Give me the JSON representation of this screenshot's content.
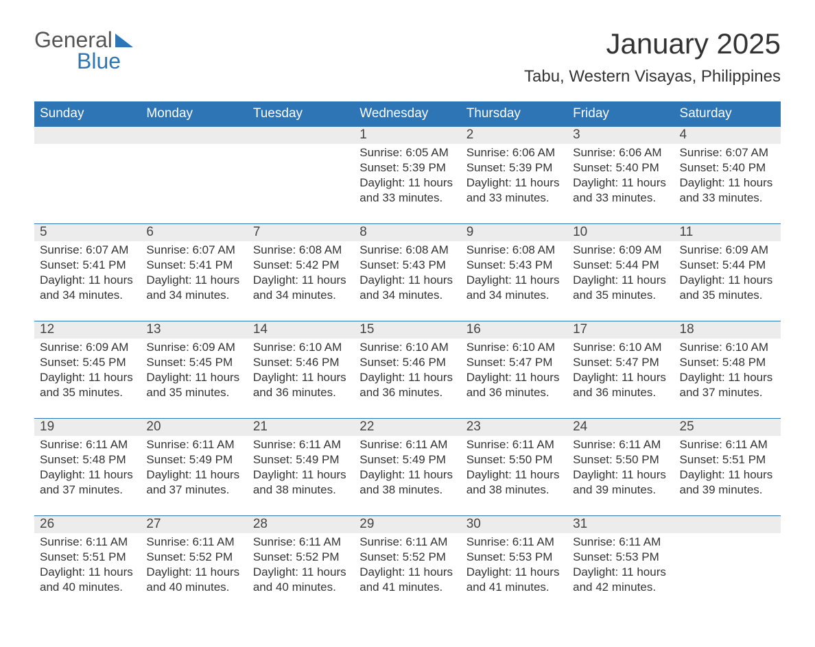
{
  "logo": {
    "general": "General",
    "blue": "Blue",
    "triangle_color": "#2e75b6",
    "general_color": "#555555",
    "blue_color": "#2e75b6"
  },
  "title": "January 2025",
  "location": "Tabu, Western Visayas, Philippines",
  "colors": {
    "header_bg": "#2e75b6",
    "header_text": "#ffffff",
    "daynum_bg": "#ececec",
    "body_bg": "#ffffff",
    "text": "#333333",
    "week_border": "#2e75b6"
  },
  "day_names": [
    "Sunday",
    "Monday",
    "Tuesday",
    "Wednesday",
    "Thursday",
    "Friday",
    "Saturday"
  ],
  "weeks": [
    [
      {
        "n": "",
        "sunrise": "",
        "sunset": "",
        "daylight": ""
      },
      {
        "n": "",
        "sunrise": "",
        "sunset": "",
        "daylight": ""
      },
      {
        "n": "",
        "sunrise": "",
        "sunset": "",
        "daylight": ""
      },
      {
        "n": "1",
        "sunrise": "Sunrise: 6:05 AM",
        "sunset": "Sunset: 5:39 PM",
        "daylight": "Daylight: 11 hours and 33 minutes."
      },
      {
        "n": "2",
        "sunrise": "Sunrise: 6:06 AM",
        "sunset": "Sunset: 5:39 PM",
        "daylight": "Daylight: 11 hours and 33 minutes."
      },
      {
        "n": "3",
        "sunrise": "Sunrise: 6:06 AM",
        "sunset": "Sunset: 5:40 PM",
        "daylight": "Daylight: 11 hours and 33 minutes."
      },
      {
        "n": "4",
        "sunrise": "Sunrise: 6:07 AM",
        "sunset": "Sunset: 5:40 PM",
        "daylight": "Daylight: 11 hours and 33 minutes."
      }
    ],
    [
      {
        "n": "5",
        "sunrise": "Sunrise: 6:07 AM",
        "sunset": "Sunset: 5:41 PM",
        "daylight": "Daylight: 11 hours and 34 minutes."
      },
      {
        "n": "6",
        "sunrise": "Sunrise: 6:07 AM",
        "sunset": "Sunset: 5:41 PM",
        "daylight": "Daylight: 11 hours and 34 minutes."
      },
      {
        "n": "7",
        "sunrise": "Sunrise: 6:08 AM",
        "sunset": "Sunset: 5:42 PM",
        "daylight": "Daylight: 11 hours and 34 minutes."
      },
      {
        "n": "8",
        "sunrise": "Sunrise: 6:08 AM",
        "sunset": "Sunset: 5:43 PM",
        "daylight": "Daylight: 11 hours and 34 minutes."
      },
      {
        "n": "9",
        "sunrise": "Sunrise: 6:08 AM",
        "sunset": "Sunset: 5:43 PM",
        "daylight": "Daylight: 11 hours and 34 minutes."
      },
      {
        "n": "10",
        "sunrise": "Sunrise: 6:09 AM",
        "sunset": "Sunset: 5:44 PM",
        "daylight": "Daylight: 11 hours and 35 minutes."
      },
      {
        "n": "11",
        "sunrise": "Sunrise: 6:09 AM",
        "sunset": "Sunset: 5:44 PM",
        "daylight": "Daylight: 11 hours and 35 minutes."
      }
    ],
    [
      {
        "n": "12",
        "sunrise": "Sunrise: 6:09 AM",
        "sunset": "Sunset: 5:45 PM",
        "daylight": "Daylight: 11 hours and 35 minutes."
      },
      {
        "n": "13",
        "sunrise": "Sunrise: 6:09 AM",
        "sunset": "Sunset: 5:45 PM",
        "daylight": "Daylight: 11 hours and 35 minutes."
      },
      {
        "n": "14",
        "sunrise": "Sunrise: 6:10 AM",
        "sunset": "Sunset: 5:46 PM",
        "daylight": "Daylight: 11 hours and 36 minutes."
      },
      {
        "n": "15",
        "sunrise": "Sunrise: 6:10 AM",
        "sunset": "Sunset: 5:46 PM",
        "daylight": "Daylight: 11 hours and 36 minutes."
      },
      {
        "n": "16",
        "sunrise": "Sunrise: 6:10 AM",
        "sunset": "Sunset: 5:47 PM",
        "daylight": "Daylight: 11 hours and 36 minutes."
      },
      {
        "n": "17",
        "sunrise": "Sunrise: 6:10 AM",
        "sunset": "Sunset: 5:47 PM",
        "daylight": "Daylight: 11 hours and 36 minutes."
      },
      {
        "n": "18",
        "sunrise": "Sunrise: 6:10 AM",
        "sunset": "Sunset: 5:48 PM",
        "daylight": "Daylight: 11 hours and 37 minutes."
      }
    ],
    [
      {
        "n": "19",
        "sunrise": "Sunrise: 6:11 AM",
        "sunset": "Sunset: 5:48 PM",
        "daylight": "Daylight: 11 hours and 37 minutes."
      },
      {
        "n": "20",
        "sunrise": "Sunrise: 6:11 AM",
        "sunset": "Sunset: 5:49 PM",
        "daylight": "Daylight: 11 hours and 37 minutes."
      },
      {
        "n": "21",
        "sunrise": "Sunrise: 6:11 AM",
        "sunset": "Sunset: 5:49 PM",
        "daylight": "Daylight: 11 hours and 38 minutes."
      },
      {
        "n": "22",
        "sunrise": "Sunrise: 6:11 AM",
        "sunset": "Sunset: 5:49 PM",
        "daylight": "Daylight: 11 hours and 38 minutes."
      },
      {
        "n": "23",
        "sunrise": "Sunrise: 6:11 AM",
        "sunset": "Sunset: 5:50 PM",
        "daylight": "Daylight: 11 hours and 38 minutes."
      },
      {
        "n": "24",
        "sunrise": "Sunrise: 6:11 AM",
        "sunset": "Sunset: 5:50 PM",
        "daylight": "Daylight: 11 hours and 39 minutes."
      },
      {
        "n": "25",
        "sunrise": "Sunrise: 6:11 AM",
        "sunset": "Sunset: 5:51 PM",
        "daylight": "Daylight: 11 hours and 39 minutes."
      }
    ],
    [
      {
        "n": "26",
        "sunrise": "Sunrise: 6:11 AM",
        "sunset": "Sunset: 5:51 PM",
        "daylight": "Daylight: 11 hours and 40 minutes."
      },
      {
        "n": "27",
        "sunrise": "Sunrise: 6:11 AM",
        "sunset": "Sunset: 5:52 PM",
        "daylight": "Daylight: 11 hours and 40 minutes."
      },
      {
        "n": "28",
        "sunrise": "Sunrise: 6:11 AM",
        "sunset": "Sunset: 5:52 PM",
        "daylight": "Daylight: 11 hours and 40 minutes."
      },
      {
        "n": "29",
        "sunrise": "Sunrise: 6:11 AM",
        "sunset": "Sunset: 5:52 PM",
        "daylight": "Daylight: 11 hours and 41 minutes."
      },
      {
        "n": "30",
        "sunrise": "Sunrise: 6:11 AM",
        "sunset": "Sunset: 5:53 PM",
        "daylight": "Daylight: 11 hours and 41 minutes."
      },
      {
        "n": "31",
        "sunrise": "Sunrise: 6:11 AM",
        "sunset": "Sunset: 5:53 PM",
        "daylight": "Daylight: 11 hours and 42 minutes."
      },
      {
        "n": "",
        "sunrise": "",
        "sunset": "",
        "daylight": ""
      }
    ]
  ]
}
